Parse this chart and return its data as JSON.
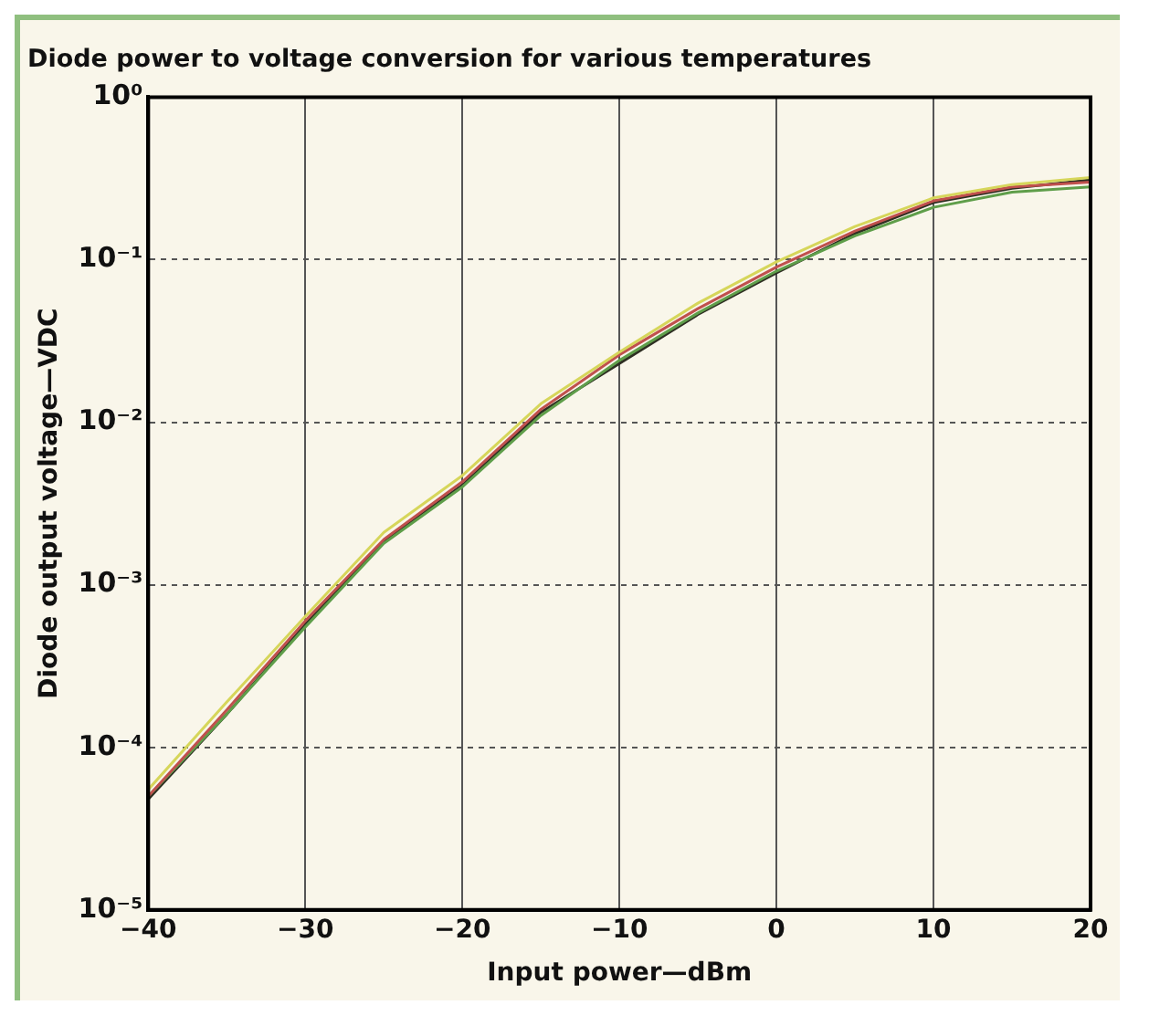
{
  "chart_data": {
    "type": "line",
    "title": "Diode power to voltage conversion for various temperatures",
    "xlabel": "Input power—dBm",
    "ylabel": "Diode output voltage—VDC",
    "x": [
      -40,
      -35,
      -30,
      -25,
      -20,
      -15,
      -10,
      -5,
      0,
      5,
      10,
      15,
      20
    ],
    "series": [
      {
        "color": "#d6d65a",
        "values": [
          5.5e-05,
          0.00019,
          0.00064,
          0.0021,
          0.0047,
          0.013,
          0.027,
          0.054,
          0.097,
          0.16,
          0.24,
          0.29,
          0.32
        ]
      },
      {
        "color": "#c0504d",
        "values": [
          5e-05,
          0.00017,
          0.0006,
          0.0019,
          0.0043,
          0.012,
          0.026,
          0.05,
          0.09,
          0.15,
          0.23,
          0.28,
          0.3
        ]
      },
      {
        "color": "#5f9e4a",
        "values": [
          5e-05,
          0.00016,
          0.00055,
          0.0018,
          0.004,
          0.011,
          0.024,
          0.047,
          0.085,
          0.14,
          0.21,
          0.26,
          0.28
        ]
      },
      {
        "color": "#2e2e22",
        "values": [
          4.8e-05,
          0.00016,
          0.00057,
          0.00185,
          0.0041,
          0.0115,
          0.023,
          0.046,
          0.083,
          0.145,
          0.225,
          0.275,
          0.31
        ]
      }
    ],
    "xlim": [
      -40,
      20
    ],
    "xticks": [
      {
        "value": -40,
        "label": "−40"
      },
      {
        "value": -30,
        "label": "−30"
      },
      {
        "value": -20,
        "label": "−20"
      },
      {
        "value": -10,
        "label": "−10"
      },
      0,
      10,
      20
    ],
    "ylim": [
      1e-05,
      1
    ],
    "yticks": [
      {
        "value": 1e-05,
        "label": "10⁻⁵"
      },
      {
        "value": 0.0001,
        "label": "10⁻⁴"
      },
      {
        "value": 0.001,
        "label": "10⁻³"
      },
      {
        "value": 0.01,
        "label": "10⁻²"
      },
      {
        "value": 0.1,
        "label": "10⁻¹"
      },
      {
        "value": 1,
        "label": "10⁰"
      }
    ],
    "log": "y",
    "grid": true,
    "line_style": "solid",
    "marker": "none",
    "legend": false
  }
}
